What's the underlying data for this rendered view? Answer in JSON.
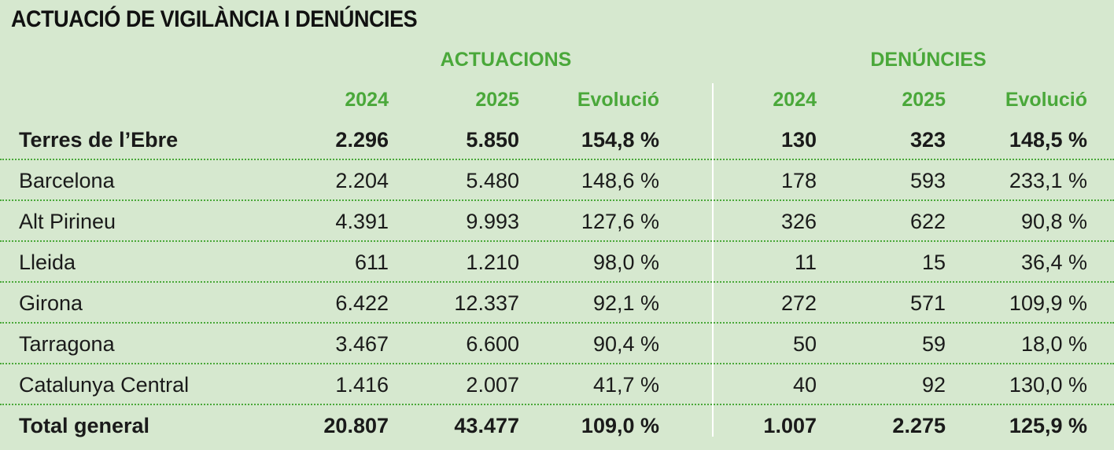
{
  "title": "ACTUACIÓ DE VIGILÀNCIA I DENÚNCIES",
  "groups": {
    "actuacions": "ACTUACIONS",
    "denuncies": "DENÚNCIES"
  },
  "columns": {
    "act_2024": "2024",
    "act_2025": "2025",
    "act_evol": "Evolució",
    "den_2024": "2024",
    "den_2025": "2025",
    "den_evol": "Evolució"
  },
  "rows": [
    {
      "name": "Terres de l’Ebre",
      "act_2024": "2.296",
      "act_2025": "5.850",
      "act_evol": "154,8 %",
      "den_2024": "130",
      "den_2025": "323",
      "den_evol": "148,5 %"
    },
    {
      "name": "Barcelona",
      "act_2024": "2.204",
      "act_2025": "5.480",
      "act_evol": "148,6 %",
      "den_2024": "178",
      "den_2025": "593",
      "den_evol": "233,1 %"
    },
    {
      "name": "Alt Pirineu",
      "act_2024": "4.391",
      "act_2025": "9.993",
      "act_evol": "127,6 %",
      "den_2024": "326",
      "den_2025": "622",
      "den_evol": "90,8 %"
    },
    {
      "name": "Lleida",
      "act_2024": "611",
      "act_2025": "1.210",
      "act_evol": "98,0 %",
      "den_2024": "11",
      "den_2025": "15",
      "den_evol": "36,4 %"
    },
    {
      "name": "Girona",
      "act_2024": "6.422",
      "act_2025": "12.337",
      "act_evol": "92,1 %",
      "den_2024": "272",
      "den_2025": "571",
      "den_evol": "109,9 %"
    },
    {
      "name": "Tarragona",
      "act_2024": "3.467",
      "act_2025": "6.600",
      "act_evol": "90,4 %",
      "den_2024": "50",
      "den_2025": "59",
      "den_evol": "18,0 %"
    },
    {
      "name": "Catalunya Central",
      "act_2024": "1.416",
      "act_2025": "2.007",
      "act_evol": "41,7 %",
      "den_2024": "40",
      "den_2025": "92",
      "den_evol": "130,0 %"
    },
    {
      "name": "Total general",
      "act_2024": "20.807",
      "act_2025": "43.477",
      "act_evol": "109,0 %",
      "den_2024": "1.007",
      "den_2025": "2.275",
      "den_evol": "125,9 %"
    }
  ],
  "colors": {
    "background": "#d6e8cf",
    "accent_green": "#4aa83a",
    "text": "#1a1a1a"
  }
}
